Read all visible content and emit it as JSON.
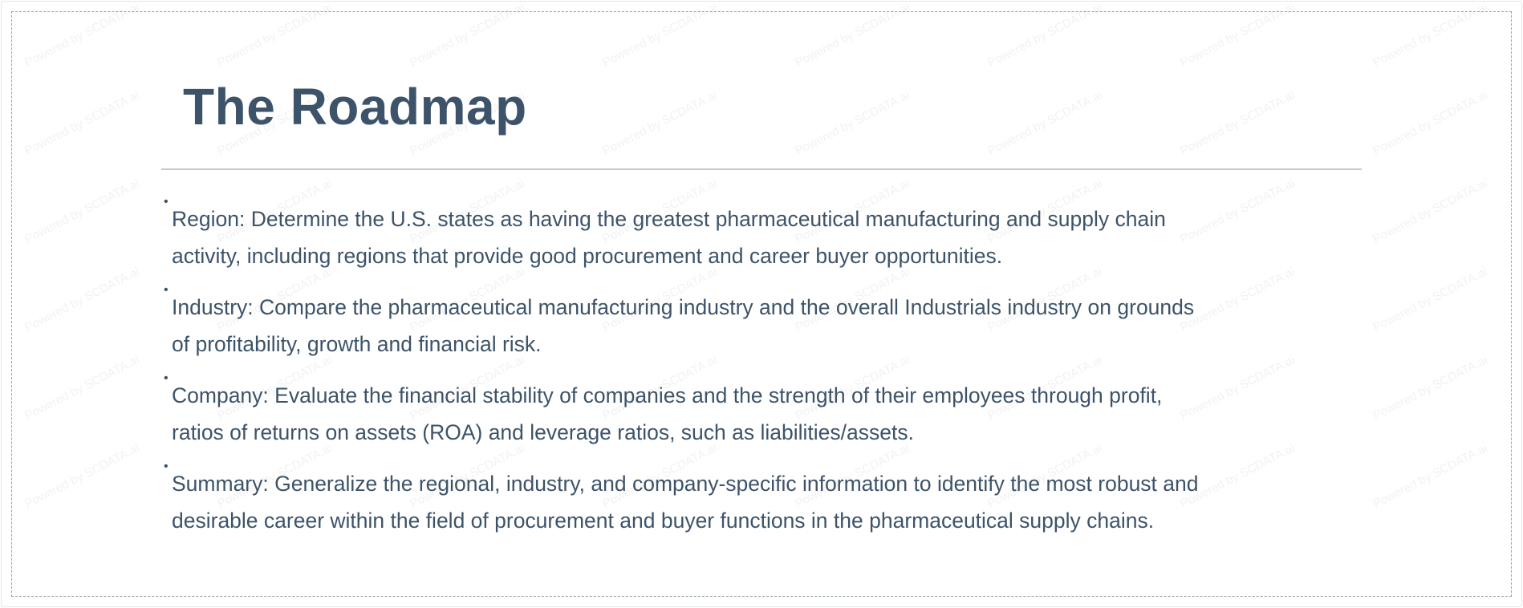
{
  "watermark": "Powered by SCDATA.ai",
  "title": "The Roadmap",
  "colors": {
    "text": "#3d5369",
    "rule": "#c8c8c8",
    "frame": "#9aa3ad"
  },
  "bullet_glyph": "•",
  "items": [
    {
      "lines": [
        "Region: Determine the U.S. states as having the greatest pharmaceutical manufacturing and supply chain",
        "activity, including regions that provide good procurement and career buyer opportunities."
      ]
    },
    {
      "lines": [
        "Industry: Compare the pharmaceutical manufacturing industry and the overall Industrials industry on grounds",
        "of profitability, growth and financial risk."
      ]
    },
    {
      "lines": [
        "Company:  Evaluate the financial stability of companies and the strength of their employees through profit,",
        "ratios of returns on assets (ROA) and leverage ratios, such as liabilities/assets."
      ]
    },
    {
      "lines": [
        "Summary: Generalize the regional, industry, and company-specific information to identify the most robust and",
        "desirable career within the field of procurement and buyer functions in the pharmaceutical supply chains."
      ]
    }
  ]
}
